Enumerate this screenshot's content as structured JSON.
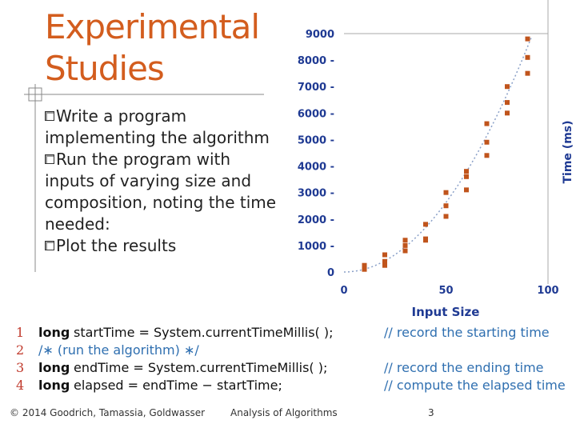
{
  "slide": {
    "title_line1": "Experimental",
    "title_line2": "Studies",
    "bullet1": "Write a program implementing the algorithm",
    "bullet2": "Run the program with inputs of varying size and composition, noting the time needed:",
    "bullet3": "Plot the results"
  },
  "code": {
    "lines": [
      {
        "num": "1",
        "kw": "long",
        "text": "startTime = System.currentTimeMillis( );",
        "comment": "// record the starting time"
      },
      {
        "num": "2",
        "kw": "",
        "text": "/∗ (run the algorithm) ∗/",
        "comment": ""
      },
      {
        "num": "3",
        "kw": "long",
        "text": "endTime = System.currentTimeMillis( );",
        "comment": "// record the ending time"
      },
      {
        "num": "4",
        "kw": "long",
        "text": "elapsed = endTime − startTime;",
        "comment": "// compute the elapsed time"
      }
    ]
  },
  "footer": {
    "copyright": "© 2014 Goodrich, Tamassia, Goldwasser",
    "course": "Analysis of Algorithms",
    "page": "3"
  },
  "colors": {
    "title": "#d35d1e",
    "points": "#c0541c",
    "axis_text": "#1f3a93",
    "comment": "#2f6fb0"
  },
  "chart_data": {
    "type": "scatter",
    "xlabel": "Input Size",
    "ylabel": "Time (ms)",
    "xlim": [
      0,
      100
    ],
    "ylim": [
      0,
      9000
    ],
    "x_ticks": [
      "0",
      "50",
      "100"
    ],
    "y_ticks": [
      "0",
      "1000",
      "2000",
      "3000",
      "4000",
      "5000",
      "6000",
      "7000",
      "8000",
      "9000"
    ],
    "grid": false,
    "trend": "quadratic dotted",
    "points": [
      {
        "x": 10,
        "y": 100
      },
      {
        "x": 10,
        "y": 250
      },
      {
        "x": 20,
        "y": 400
      },
      {
        "x": 20,
        "y": 650
      },
      {
        "x": 20,
        "y": 250
      },
      {
        "x": 30,
        "y": 800
      },
      {
        "x": 30,
        "y": 1200
      },
      {
        "x": 30,
        "y": 1000
      },
      {
        "x": 40,
        "y": 1250
      },
      {
        "x": 40,
        "y": 1800
      },
      {
        "x": 40,
        "y": 1200
      },
      {
        "x": 50,
        "y": 2100
      },
      {
        "x": 50,
        "y": 2500
      },
      {
        "x": 50,
        "y": 3000
      },
      {
        "x": 60,
        "y": 3100
      },
      {
        "x": 60,
        "y": 3600
      },
      {
        "x": 60,
        "y": 3800
      },
      {
        "x": 70,
        "y": 4400
      },
      {
        "x": 70,
        "y": 4900
      },
      {
        "x": 70,
        "y": 5600
      },
      {
        "x": 80,
        "y": 6000
      },
      {
        "x": 80,
        "y": 6400
      },
      {
        "x": 80,
        "y": 7000
      },
      {
        "x": 90,
        "y": 7500
      },
      {
        "x": 90,
        "y": 8100
      },
      {
        "x": 90,
        "y": 8800
      }
    ]
  }
}
